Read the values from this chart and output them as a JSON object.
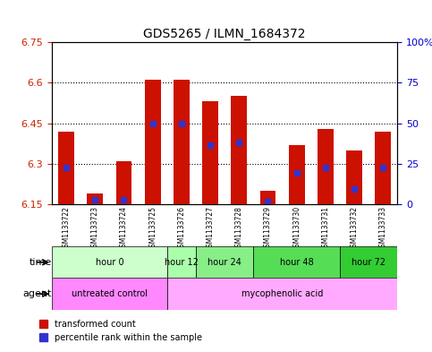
{
  "title": "GDS5265 / ILMN_1684372",
  "samples": [
    "GSM1133722",
    "GSM1133723",
    "GSM1133724",
    "GSM1133725",
    "GSM1133726",
    "GSM1133727",
    "GSM1133728",
    "GSM1133729",
    "GSM1133730",
    "GSM1133731",
    "GSM1133732",
    "GSM1133733"
  ],
  "bar_top": [
    6.42,
    6.19,
    6.31,
    6.61,
    6.61,
    6.53,
    6.55,
    6.2,
    6.37,
    6.43,
    6.35,
    6.42
  ],
  "bar_bottom": 6.15,
  "blue_pos": [
    6.285,
    6.165,
    6.165,
    6.45,
    6.45,
    6.37,
    6.38,
    6.16,
    6.265,
    6.285,
    6.205,
    6.285
  ],
  "ylim_left": [
    6.15,
    6.75
  ],
  "ylim_right": [
    0,
    100
  ],
  "yticks_left": [
    6.15,
    6.3,
    6.45,
    6.6,
    6.75
  ],
  "yticks_right": [
    0,
    25,
    50,
    75,
    100
  ],
  "ytick_labels_left": [
    "6.15",
    "6.3",
    "6.45",
    "6.6",
    "6.75"
  ],
  "ytick_labels_right": [
    "0",
    "25",
    "50",
    "75",
    "100%"
  ],
  "hlines": [
    6.3,
    6.45,
    6.6
  ],
  "time_groups": [
    {
      "label": "hour 0",
      "start": 0,
      "end": 3,
      "color": "#ccffcc"
    },
    {
      "label": "hour 12",
      "start": 4,
      "end": 4,
      "color": "#aaffaa"
    },
    {
      "label": "hour 24",
      "start": 5,
      "end": 6,
      "color": "#88ee88"
    },
    {
      "label": "hour 48",
      "start": 7,
      "end": 9,
      "color": "#55dd55"
    },
    {
      "label": "hour 72",
      "start": 10,
      "end": 11,
      "color": "#33cc33"
    }
  ],
  "agent_groups": [
    {
      "label": "untreated control",
      "start": 0,
      "end": 3,
      "color": "#ff88ff"
    },
    {
      "label": "mycophenolic acid",
      "start": 4,
      "end": 11,
      "color": "#ffaaff"
    }
  ],
  "bar_color": "#cc1100",
  "blue_color": "#3333cc",
  "bg_plot": "#ffffff",
  "bg_sample": "#cccccc",
  "left_label_color": "#cc2200",
  "right_label_color": "#0000cc",
  "grid_color": "#000000",
  "legend_red_label": "transformed count",
  "legend_blue_label": "percentile rank within the sample"
}
